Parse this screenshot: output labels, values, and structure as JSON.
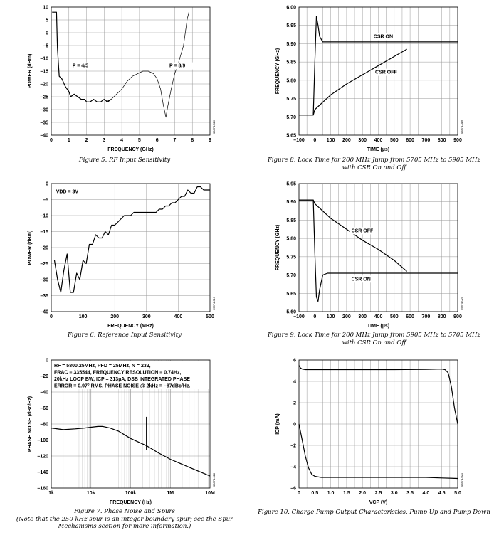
{
  "chart_data": [
    {
      "id": "fig5",
      "type": "line",
      "xlabel": "FREQUENCY (GHz)",
      "ylabel": "POWER (dBm)",
      "xlim": [
        0,
        9
      ],
      "ylim": [
        -40,
        10
      ],
      "xticks": [
        "0",
        "1",
        "2",
        "3",
        "4",
        "5",
        "6",
        "7",
        "8",
        "9"
      ],
      "yticks": [
        "10",
        "5",
        "0",
        "–5",
        "–10",
        "–15",
        "–20",
        "–25",
        "–30",
        "–35",
        "–40"
      ],
      "grid": true,
      "annotations": [
        {
          "text": "P = 4/5",
          "x": 1.2,
          "y": -13.5
        },
        {
          "text": "P = 8/9",
          "x": 6.7,
          "y": -13.5
        }
      ],
      "code": "05874-016",
      "caption": "Figure 5. RF Input Sensitivity",
      "series": [
        {
          "x": [
            0.05,
            0.3,
            0.35,
            0.45,
            0.6,
            0.8,
            1.0,
            1.1,
            1.3,
            1.5,
            1.7,
            1.9,
            2.0,
            2.2,
            2.4,
            2.6,
            2.8,
            3.0,
            3.2,
            3.4
          ],
          "y": [
            8,
            8,
            -6,
            -17,
            -18,
            -21,
            -23,
            -25,
            -24,
            -25,
            -26,
            -26,
            -27,
            -27,
            -26,
            -27,
            -27,
            -26,
            -27,
            -26
          ]
        },
        {
          "x": [
            3.1,
            3.4,
            3.7,
            4.0,
            4.3,
            4.6,
            4.9,
            5.2,
            5.5,
            5.8,
            6.0,
            6.2,
            6.35,
            6.5,
            6.6,
            6.8,
            7.0,
            7.2,
            7.5,
            7.7,
            7.8
          ],
          "y": [
            -27,
            -26,
            -24,
            -22,
            -19,
            -17,
            -16,
            -15,
            -15,
            -16,
            -18,
            -22,
            -28,
            -33,
            -29,
            -22,
            -16,
            -12,
            -5,
            5,
            8
          ]
        }
      ]
    },
    {
      "id": "fig6",
      "type": "line",
      "xlabel": "FREQUENCY (MHz)",
      "ylabel": "POWER (dBm)",
      "xlim": [
        0,
        500
      ],
      "ylim": [
        -40,
        0
      ],
      "xticks": [
        "0",
        "100",
        "200",
        "300",
        "400",
        "500"
      ],
      "yticks": [
        "0",
        "–5",
        "–10",
        "–15",
        "–20",
        "–25",
        "–30",
        "–35",
        "–40"
      ],
      "grid": true,
      "annotations": [
        {
          "text": "VDD = 3V",
          "x": 15,
          "y": -3
        }
      ],
      "code": "05874-017",
      "caption": "Figure 6. Reference Input Sensitivity",
      "series": [
        {
          "x": [
            10,
            20,
            30,
            40,
            50,
            60,
            70,
            80,
            90,
            100,
            110,
            120,
            130,
            140,
            150,
            160,
            170,
            180,
            190,
            200,
            210,
            220,
            230,
            240,
            250,
            260,
            270,
            280,
            290,
            300,
            310,
            320,
            330,
            340,
            350,
            360,
            370,
            380,
            390,
            400,
            410,
            420,
            430,
            440,
            450,
            460,
            470,
            480,
            490,
            500
          ],
          "y": [
            -24,
            -30,
            -34,
            -27,
            -22,
            -34,
            -34,
            -28,
            -30,
            -24,
            -25,
            -19,
            -19,
            -16,
            -17,
            -17,
            -15,
            -16,
            -13,
            -13,
            -12,
            -11,
            -10,
            -10,
            -10,
            -9,
            -9,
            -9,
            -9,
            -9,
            -9,
            -9,
            -9,
            -8,
            -8,
            -7,
            -7,
            -6,
            -6,
            -5,
            -4,
            -4,
            -2,
            -3,
            -3,
            -1,
            -1,
            -2,
            -2,
            -2
          ]
        }
      ]
    },
    {
      "id": "fig7",
      "type": "line",
      "xlabel": "FREQUENCY (Hz)",
      "ylabel": "PHASE NOISE (dBc/Hz)",
      "xscale": "log",
      "xlim": [
        1000,
        10000000
      ],
      "ylim": [
        -160,
        0
      ],
      "xticks": [
        "1k",
        "10k",
        "100k",
        "1M",
        "10M"
      ],
      "yticks": [
        "0",
        "–20",
        "–40",
        "–60",
        "–80",
        "–100",
        "–120",
        "–140",
        "–160"
      ],
      "grid": true,
      "annotations": [
        {
          "text": "RF = 5800.25MHz, PFD = 25MHz, N = 232,"
        },
        {
          "text": "FRAC = 335544, FREQUENCY RESOLUTION = 0.74Hz,"
        },
        {
          "text": "20kHz LOOP BW, ICP = 313µA, DSB INTEGRATED PHASE"
        },
        {
          "text": "ERROR = 0.97° RMS, PHASE NOISE @ 2kHz = –87dBc/Hz."
        }
      ],
      "code": "05874-018",
      "caption": "Figure 7. Phase Noise and Spurs",
      "caption2": "(Note that the 250 kHz spur is an integer boundary spur; see the Spur",
      "caption3": "Mechanisms section for more information.)",
      "series": [
        {
          "x": [
            1000,
            2000,
            4000,
            7000,
            10000,
            15000,
            20000,
            30000,
            50000,
            100000,
            250000,
            500000,
            1000000,
            3000000,
            10000000
          ],
          "y": [
            -85,
            -87,
            -86,
            -85,
            -84,
            -83,
            -83,
            -85,
            -89,
            -98,
            -107,
            -116,
            -124,
            -134,
            -145
          ]
        },
        {
          "x": [
            250000,
            250000
          ],
          "y": [
            -112,
            -71
          ]
        }
      ]
    },
    {
      "id": "fig8",
      "type": "line",
      "xlabel": "TIME (µs)",
      "ylabel": "FREQUENCY (GHz)",
      "xlim": [
        -100,
        900
      ],
      "ylim": [
        5.65,
        6.0
      ],
      "xticks": [
        "–100",
        "0",
        "100",
        "200",
        "300",
        "400",
        "500",
        "600",
        "700",
        "800",
        "900"
      ],
      "yticks": [
        "6.00",
        "5.95",
        "5.90",
        "5.85",
        "5.80",
        "5.75",
        "5.70",
        "5.65"
      ],
      "grid": true,
      "annotations": [
        {
          "text": "CSR ON",
          "x": 370,
          "y": 5.915
        },
        {
          "text": "CSR OFF",
          "x": 380,
          "y": 5.818
        }
      ],
      "code": "05874-019",
      "caption": "Figure 8. Lock Time for 200 MHz Jump from 5705 MHz to 5905 MHz",
      "caption2": "with CSR On and Off",
      "series": [
        {
          "name": "CSR ON",
          "x": [
            -100,
            -10,
            0,
            10,
            20,
            30,
            50,
            80,
            150,
            900
          ],
          "y": [
            5.705,
            5.705,
            5.85,
            5.975,
            5.95,
            5.92,
            5.905,
            5.905,
            5.905,
            5.905
          ]
        },
        {
          "name": "CSR OFF",
          "x": [
            -100,
            -10,
            0,
            50,
            100,
            200,
            300,
            400,
            500,
            580
          ],
          "y": [
            5.705,
            5.705,
            5.72,
            5.74,
            5.76,
            5.79,
            5.815,
            5.84,
            5.865,
            5.885
          ]
        }
      ]
    },
    {
      "id": "fig9",
      "type": "line",
      "xlabel": "TIME (µs)",
      "ylabel": "FREQUENCY (GHz)",
      "xlim": [
        -100,
        900
      ],
      "ylim": [
        5.6,
        5.95
      ],
      "xticks": [
        "–100",
        "0",
        "100",
        "200",
        "300",
        "400",
        "500",
        "600",
        "700",
        "800",
        "900"
      ],
      "yticks": [
        "5.95",
        "5.90",
        "5.85",
        "5.80",
        "5.75",
        "5.70",
        "5.65",
        "5.60"
      ],
      "grid": true,
      "annotations": [
        {
          "text": "CSR OFF",
          "x": 230,
          "y": 5.817
        },
        {
          "text": "CSR ON",
          "x": 230,
          "y": 5.685
        }
      ],
      "code": "05874-020",
      "caption": "Figure 9. Lock Time for 200 MHz Jump from 5905 MHz to 5705 MHz",
      "caption2": "with CSR On and Off",
      "series": [
        {
          "name": "CSR ON",
          "x": [
            -100,
            -10,
            0,
            10,
            20,
            30,
            50,
            80,
            150,
            900
          ],
          "y": [
            5.905,
            5.905,
            5.76,
            5.64,
            5.628,
            5.66,
            5.7,
            5.705,
            5.705,
            5.705
          ]
        },
        {
          "name": "CSR OFF",
          "x": [
            -100,
            -10,
            0,
            50,
            100,
            200,
            300,
            400,
            500,
            580
          ],
          "y": [
            5.905,
            5.905,
            5.895,
            5.875,
            5.855,
            5.825,
            5.795,
            5.77,
            5.74,
            5.71
          ]
        }
      ]
    },
    {
      "id": "fig10",
      "type": "line",
      "xlabel": "VCP (V)",
      "ylabel": "ICP (mA)",
      "xlim": [
        0,
        5
      ],
      "ylim": [
        -6,
        6
      ],
      "xticks": [
        "0",
        "0.5",
        "1.0",
        "1.5",
        "2.0",
        "2.5",
        "3.0",
        "3.5",
        "4.0",
        "4.5",
        "5.0"
      ],
      "yticks": [
        "6",
        "4",
        "2",
        "0",
        "–2",
        "–4",
        "–6"
      ],
      "grid": true,
      "code": "05874-021",
      "caption": "Figure 10. Charge Pump Output Characteristics, Pump Up and Pump Down",
      "series": [
        {
          "name": "Pump Up",
          "x": [
            0,
            0.05,
            0.1,
            0.2,
            0.4,
            1.0,
            2.0,
            3.0,
            4.0,
            4.5,
            4.6,
            4.7,
            4.8,
            4.9,
            5.0
          ],
          "y": [
            5.5,
            5.25,
            5.15,
            5.1,
            5.1,
            5.1,
            5.1,
            5.1,
            5.12,
            5.15,
            5.1,
            4.8,
            3.5,
            1.5,
            0
          ]
        },
        {
          "name": "Pump Down",
          "x": [
            0,
            0.1,
            0.2,
            0.3,
            0.4,
            0.5,
            0.7,
            1.0,
            2.0,
            3.0,
            4.0,
            4.5,
            5.0
          ],
          "y": [
            0,
            -1.5,
            -3,
            -4.1,
            -4.7,
            -4.9,
            -5.0,
            -5.0,
            -5.0,
            -5.0,
            -5.0,
            -5.05,
            -5.1
          ]
        }
      ]
    }
  ]
}
